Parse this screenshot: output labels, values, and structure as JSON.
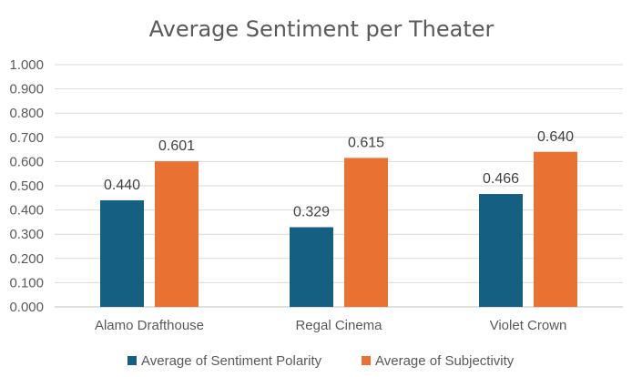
{
  "chart_data": {
    "type": "bar",
    "title": "Average Sentiment per Theater",
    "categories": [
      "Alamo Drafthouse",
      "Regal Cinema",
      "Violet Crown"
    ],
    "series": [
      {
        "name": "Average of Sentiment Polarity",
        "values": [
          0.44,
          0.329,
          0.466
        ],
        "labels": [
          "0.440",
          "0.329",
          "0.466"
        ],
        "color": "#156082"
      },
      {
        "name": "Average of Subjectivity",
        "values": [
          0.601,
          0.615,
          0.64
        ],
        "labels": [
          "0.601",
          "0.615",
          "0.640"
        ],
        "color": "#E97132"
      }
    ],
    "ylim": [
      0,
      1
    ],
    "yticks": [
      "0.000",
      "0.100",
      "0.200",
      "0.300",
      "0.400",
      "0.500",
      "0.600",
      "0.700",
      "0.800",
      "0.900",
      "1.000"
    ],
    "grid": true,
    "legend": "bottom",
    "gridColor": "#D9D9D9",
    "axisColor": "#BFBFBF"
  }
}
